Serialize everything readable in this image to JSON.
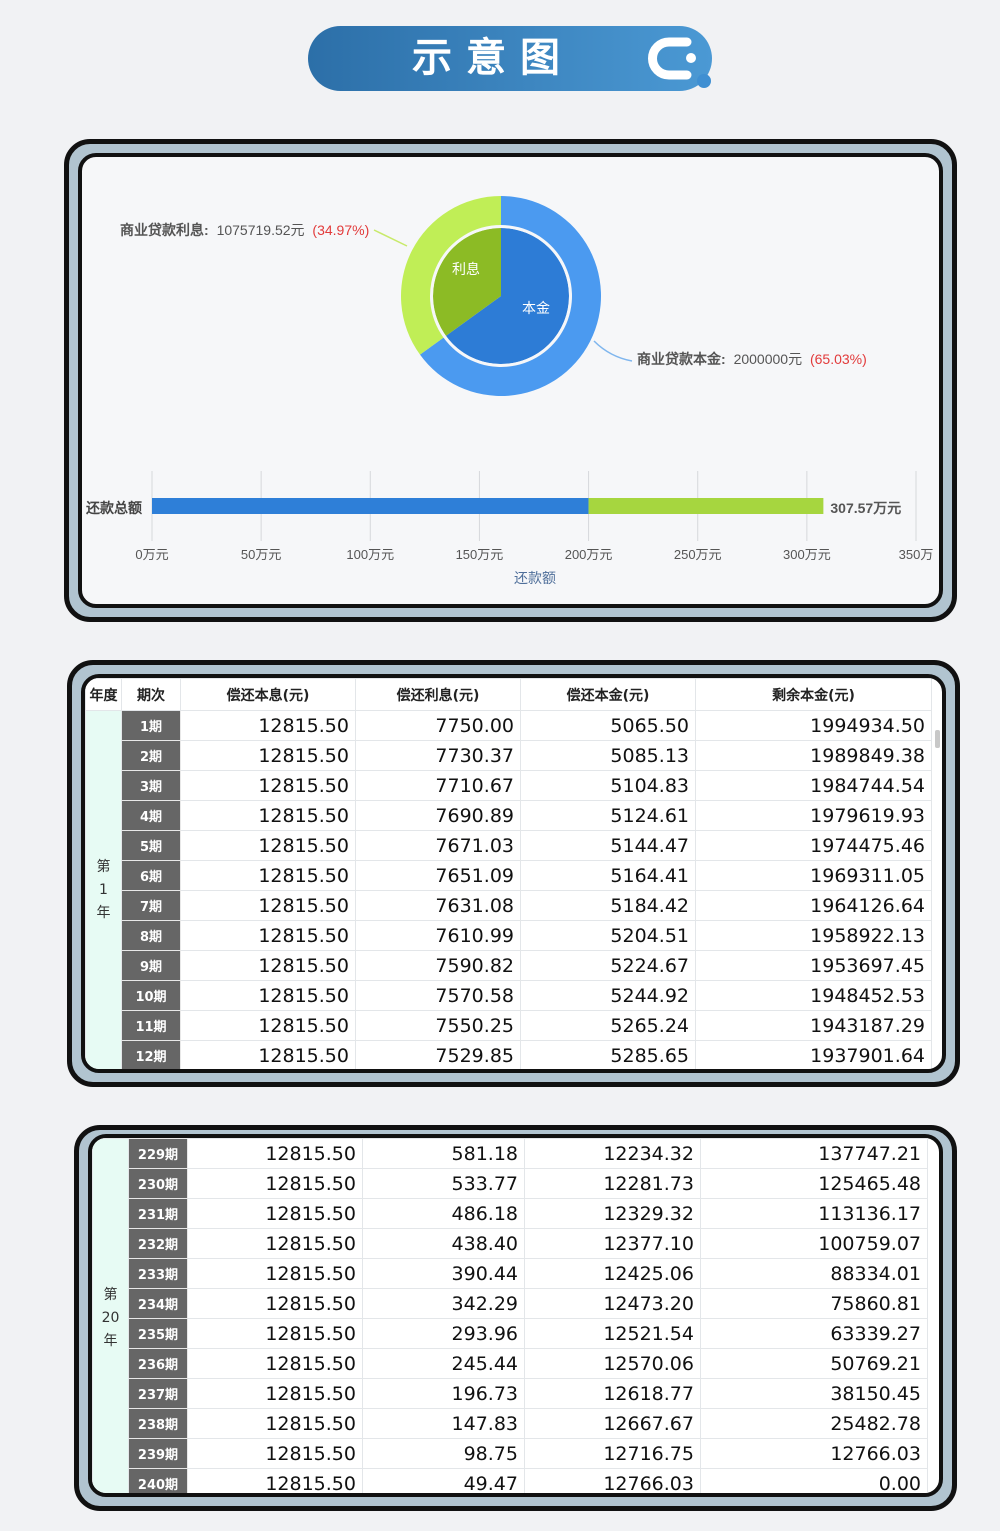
{
  "header": {
    "title": "示意图"
  },
  "pie": {
    "inner_labels": {
      "interest": "利息",
      "principal": "本金"
    },
    "callouts": {
      "interest": {
        "name": "商业贷款利息:",
        "value": "1075719.52元",
        "pct": "(34.97%)"
      },
      "principal": {
        "name": "商业贷款本金:",
        "value": "2000000元",
        "pct": "(65.03%)"
      }
    }
  },
  "chart_data": [
    {
      "type": "pie",
      "slices": [
        {
          "name": "商业贷款本金",
          "value": 2000000,
          "pct": 65.03
        },
        {
          "name": "商业贷款利息",
          "value": 1075719.52,
          "pct": 34.97
        }
      ]
    },
    {
      "type": "bar",
      "orientation": "horizontal",
      "stacked": true,
      "categories": [
        "还款总额"
      ],
      "series": [
        {
          "values": [
            200
          ]
        },
        {
          "values": [
            107.57
          ]
        }
      ],
      "total_label": "307.57万元",
      "xlabel": "还款额",
      "xlim": [
        0,
        350
      ],
      "xticks": [
        "0万元",
        "50万元",
        "100万元",
        "150万元",
        "200万元",
        "250万元",
        "300万元",
        "350万"
      ],
      "grid": true
    }
  ],
  "colors": {
    "principal_dark": "#2d7cd6",
    "principal_light": "#4b9af0",
    "interest_dark": "#8cbb25",
    "interest_light": "#c0ee56",
    "bar_principal": "#2e7fd8",
    "bar_interest": "#a6d63f"
  },
  "table1": {
    "headers": [
      "年度",
      "期次",
      "偿还本息(元)",
      "偿还利息(元)",
      "偿还本金(元)",
      "剩余本金(元)"
    ],
    "year": {
      "pre": "第",
      "num": "1",
      "post": "年"
    },
    "rows": [
      [
        "1期",
        "12815.50",
        "7750.00",
        "5065.50",
        "1994934.50"
      ],
      [
        "2期",
        "12815.50",
        "7730.37",
        "5085.13",
        "1989849.38"
      ],
      [
        "3期",
        "12815.50",
        "7710.67",
        "5104.83",
        "1984744.54"
      ],
      [
        "4期",
        "12815.50",
        "7690.89",
        "5124.61",
        "1979619.93"
      ],
      [
        "5期",
        "12815.50",
        "7671.03",
        "5144.47",
        "1974475.46"
      ],
      [
        "6期",
        "12815.50",
        "7651.09",
        "5164.41",
        "1969311.05"
      ],
      [
        "7期",
        "12815.50",
        "7631.08",
        "5184.42",
        "1964126.64"
      ],
      [
        "8期",
        "12815.50",
        "7610.99",
        "5204.51",
        "1958922.13"
      ],
      [
        "9期",
        "12815.50",
        "7590.82",
        "5224.67",
        "1953697.45"
      ],
      [
        "10期",
        "12815.50",
        "7570.58",
        "5244.92",
        "1948452.53"
      ],
      [
        "11期",
        "12815.50",
        "7550.25",
        "5265.24",
        "1943187.29"
      ],
      [
        "12期",
        "12815.50",
        "7529.85",
        "5285.65",
        "1937901.64"
      ]
    ]
  },
  "table2": {
    "year": {
      "pre": "第",
      "num": "20",
      "post": "年"
    },
    "rows": [
      [
        "229期",
        "12815.50",
        "581.18",
        "12234.32",
        "137747.21"
      ],
      [
        "230期",
        "12815.50",
        "533.77",
        "12281.73",
        "125465.48"
      ],
      [
        "231期",
        "12815.50",
        "486.18",
        "12329.32",
        "113136.17"
      ],
      [
        "232期",
        "12815.50",
        "438.40",
        "12377.10",
        "100759.07"
      ],
      [
        "233期",
        "12815.50",
        "390.44",
        "12425.06",
        "88334.01"
      ],
      [
        "234期",
        "12815.50",
        "342.29",
        "12473.20",
        "75860.81"
      ],
      [
        "235期",
        "12815.50",
        "293.96",
        "12521.54",
        "63339.27"
      ],
      [
        "236期",
        "12815.50",
        "245.44",
        "12570.06",
        "50769.21"
      ],
      [
        "237期",
        "12815.50",
        "196.73",
        "12618.77",
        "38150.45"
      ],
      [
        "238期",
        "12815.50",
        "147.83",
        "12667.67",
        "25482.78"
      ],
      [
        "239期",
        "12815.50",
        "98.75",
        "12716.75",
        "12766.03"
      ],
      [
        "240期",
        "12815.50",
        "49.47",
        "12766.03",
        "0.00"
      ]
    ]
  }
}
